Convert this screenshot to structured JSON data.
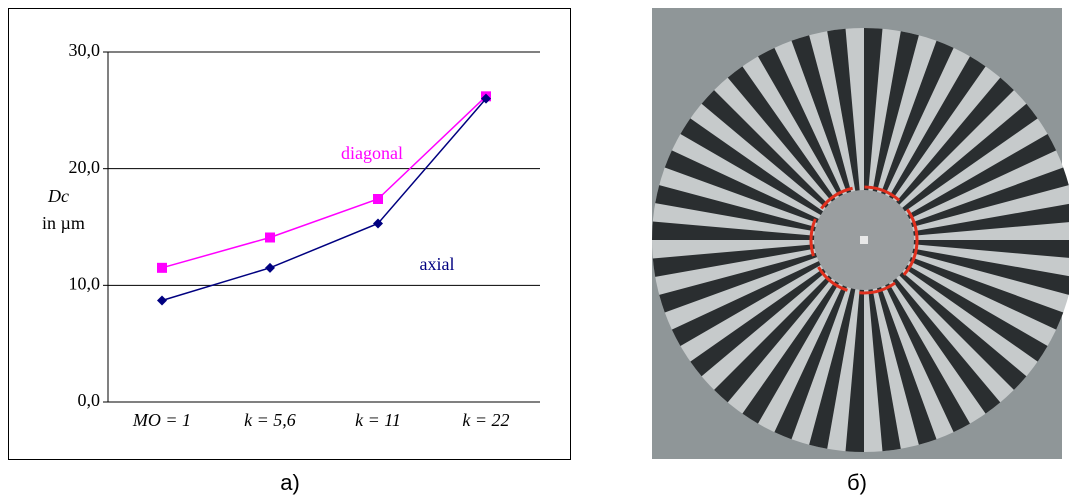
{
  "chart_data": {
    "type": "line",
    "categories": [
      "MO = 1",
      "k = 5,6",
      "k = 11",
      "k = 22"
    ],
    "series": [
      {
        "name": "diagonal",
        "color": "#ff00ff",
        "marker": "square",
        "values": [
          11.5,
          14.1,
          17.4,
          26.2
        ]
      },
      {
        "name": "axial",
        "color": "#000080",
        "marker": "diamond",
        "values": [
          8.7,
          11.5,
          15.3,
          26.0
        ]
      }
    ],
    "y_label": [
      "Dc",
      "in µm"
    ],
    "ylim": [
      0,
      30
    ],
    "yticks": [
      {
        "value": 0,
        "label": "0,0"
      },
      {
        "value": 10,
        "label": "10,0"
      },
      {
        "value": 20,
        "label": "20,0"
      },
      {
        "value": 30,
        "label": "30,0"
      }
    ],
    "grid": true
  },
  "panel_labels": [
    "а)",
    "б)"
  ]
}
